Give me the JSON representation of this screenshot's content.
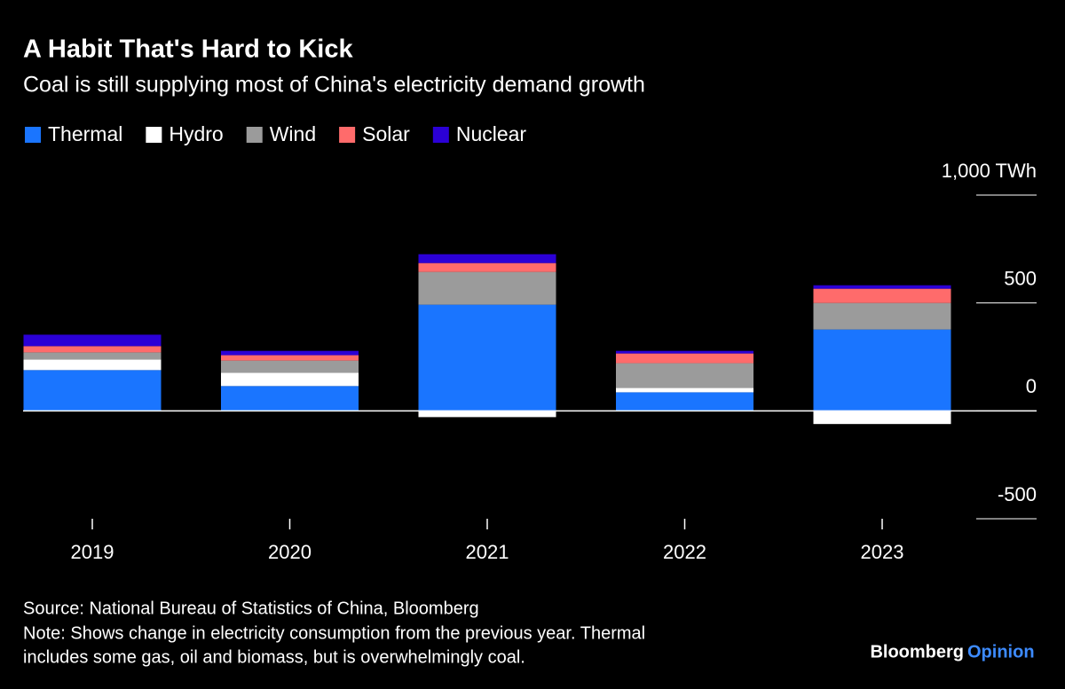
{
  "chart_data": {
    "type": "stacked_bar",
    "title": "A Habit That's Hard to Kick",
    "subtitle": "Coal is still supplying most of China's electricity demand growth",
    "categories": [
      "2019",
      "2020",
      "2021",
      "2022",
      "2023"
    ],
    "series": [
      {
        "name": "Thermal",
        "color": "#1a75ff",
        "values": [
          189,
          115,
          492,
          86,
          377
        ]
      },
      {
        "name": "Hydro",
        "color": "#ffffff",
        "values": [
          49,
          61,
          -29,
          20,
          -61
        ]
      },
      {
        "name": "Wind",
        "color": "#9b9b9b",
        "values": [
          33,
          57,
          152,
          115,
          123
        ]
      },
      {
        "name": "Solar",
        "color": "#ff6b6b",
        "values": [
          29,
          25,
          41,
          45,
          66
        ]
      },
      {
        "name": "Nuclear",
        "color": "#2b00d6",
        "values": [
          53,
          20,
          41,
          12,
          16
        ]
      }
    ],
    "ylim": [
      -500,
      1000
    ],
    "yticks": [
      {
        "value": 1000,
        "label": "1,000 TWh"
      },
      500,
      0,
      -500
    ],
    "legend": "top-left",
    "source": "Source: National Bureau of Statistics of China, Bloomberg",
    "note": [
      "Note: Shows change in electricity consumption from the previous year. Thermal",
      "includes some gas, oil and biomass, but is overwhelmingly coal."
    ],
    "brand": [
      "Bloomberg",
      "Opinion"
    ]
  }
}
